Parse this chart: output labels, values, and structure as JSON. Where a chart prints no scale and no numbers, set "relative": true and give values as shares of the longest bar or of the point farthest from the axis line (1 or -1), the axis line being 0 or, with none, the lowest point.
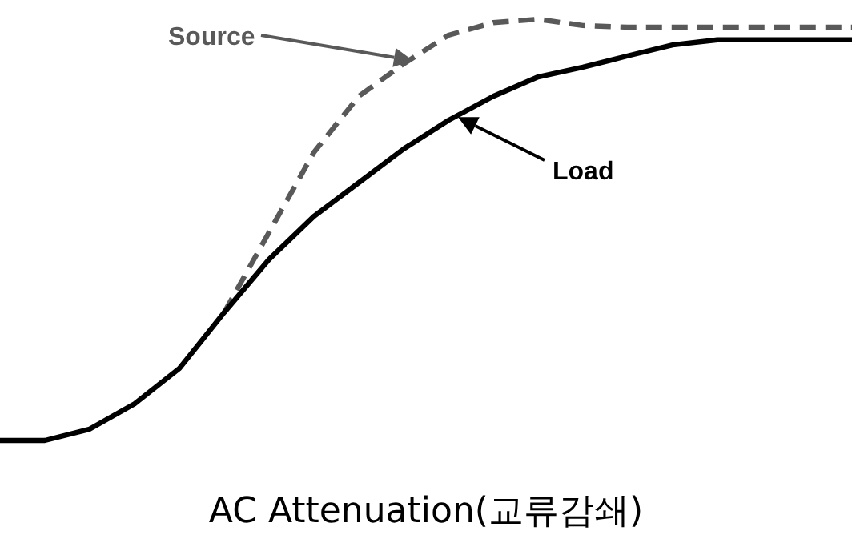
{
  "chart_data": {
    "type": "line",
    "title": "AC Attenuation(교류감쇄)",
    "relative": true,
    "categories": [
      null,
      null,
      null,
      null,
      null,
      null,
      null,
      null,
      null,
      null,
      null,
      null,
      null,
      null,
      null,
      null,
      null,
      null,
      null,
      null
    ],
    "series": [
      {
        "name": "Source",
        "color": "#595959",
        "line_style": "dashed",
        "values": [
          null,
          null,
          null,
          null,
          null,
          0.304,
          0.494,
          0.684,
          0.817,
          0.894,
          0.962,
          0.992,
          1.0,
          0.985,
          0.981,
          0.981,
          0.981,
          0.981,
          0.981,
          0.981
        ]
      },
      {
        "name": "Load",
        "color": "#000000",
        "line_style": "solid",
        "values": [
          0,
          0,
          0.027,
          0.087,
          0.171,
          0.304,
          0.43,
          0.532,
          0.612,
          0.692,
          0.76,
          0.817,
          0.863,
          0.886,
          0.913,
          0.939,
          0.951,
          0.951,
          0.951,
          0.951
        ]
      }
    ]
  }
}
